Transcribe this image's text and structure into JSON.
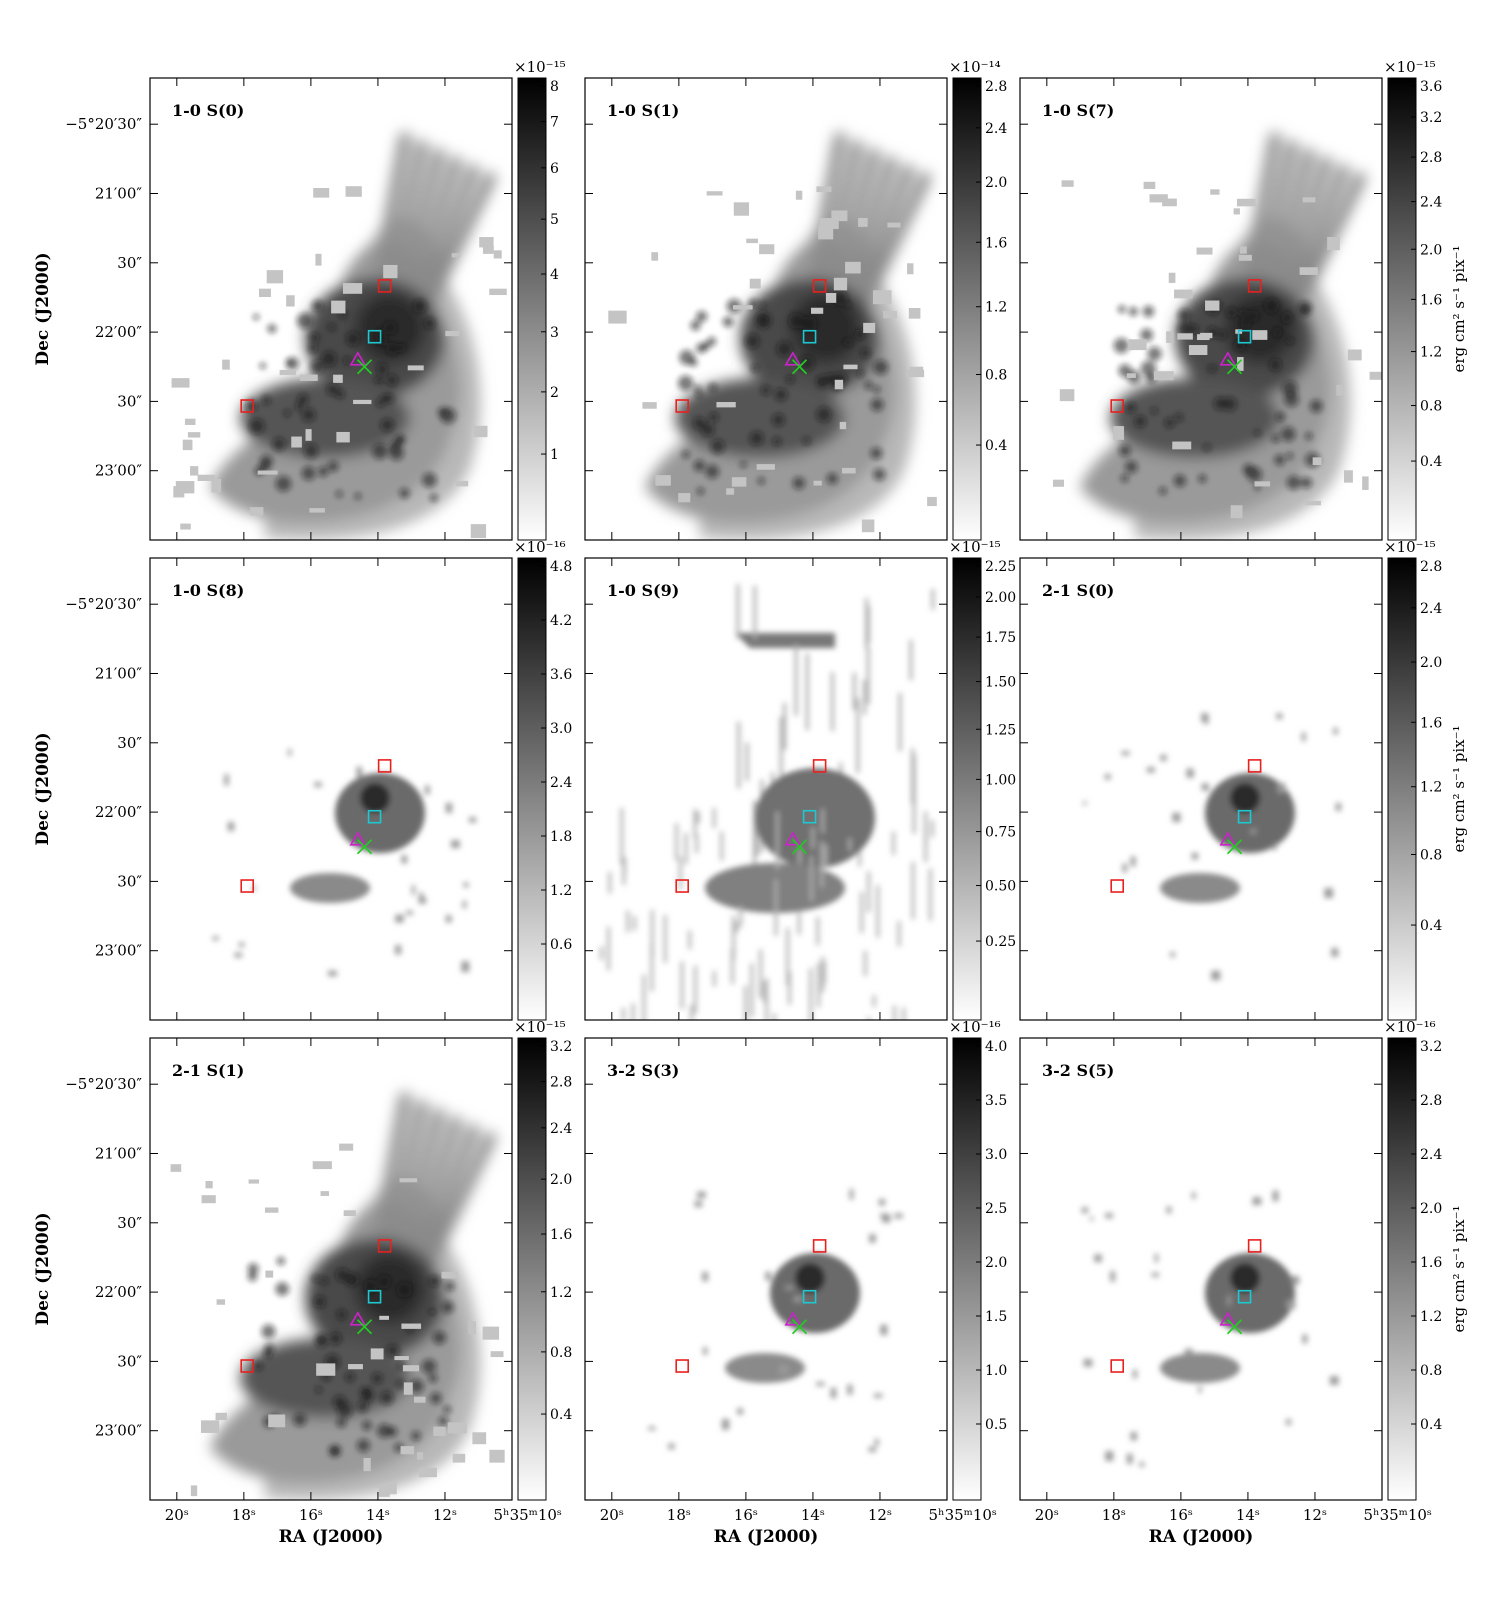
{
  "figure": {
    "y_axis_label": "Dec (J2000)",
    "x_axis_label": "RA (J2000)",
    "colorbar_label": "erg cm² s⁻¹ pix⁻¹",
    "dec_ticks": [
      "−5°20′30″",
      "21′00″",
      "30″",
      "22′00″",
      "30″",
      "23′00″"
    ],
    "ra_ticks": [
      "20ˢ",
      "18ˢ",
      "16ˢ",
      "14ˢ",
      "12ˢ",
      "5ʰ35ᵐ10ˢ"
    ]
  },
  "colors": {
    "red_square": "#e8201e",
    "cyan_square": "#1ec8d0",
    "magenta_triangle": "#cc22cc",
    "green_cross": "#22cc22"
  },
  "markers": [
    {
      "type": "square",
      "color": "red",
      "ra_s": 13.8,
      "dec_off_arcsec": 90
    },
    {
      "type": "square",
      "color": "cyan",
      "ra_s": 14.1,
      "dec_off_arcsec": 112
    },
    {
      "type": "triangle",
      "color": "magenta",
      "ra_s": 14.6,
      "dec_off_arcsec": 122
    },
    {
      "type": "cross",
      "color": "green",
      "ra_s": 14.4,
      "dec_off_arcsec": 125
    },
    {
      "type": "square",
      "color": "red",
      "ra_s": 17.9,
      "dec_off_arcsec": 142
    }
  ],
  "chart_data": [
    {
      "type": "heatmap",
      "title": "1-0 S(0)",
      "cbar_multiplier": "×10⁻¹⁵",
      "cbar_scale": "log",
      "cbar_ticks": [
        "8",
        "7",
        "6",
        "5",
        "4",
        "3",
        "2",
        "1"
      ],
      "emission": "extended"
    },
    {
      "type": "heatmap",
      "title": "1-0 S(1)",
      "cbar_multiplier": "×10⁻¹⁴",
      "cbar_scale": "log",
      "cbar_ticks": [
        "2.8",
        "2.4",
        "2.0",
        "1.6",
        "1.2",
        "0.8",
        "0.4"
      ],
      "emission": "extended"
    },
    {
      "type": "heatmap",
      "title": "1-0 S(7)",
      "cbar_multiplier": "×10⁻¹⁵",
      "cbar_scale": "log",
      "cbar_ticks": [
        "3.6",
        "3.2",
        "2.8",
        "2.4",
        "2.0",
        "1.6",
        "1.2",
        "0.8",
        "0.4"
      ],
      "emission": "extended"
    },
    {
      "type": "heatmap",
      "title": "1-0 S(8)",
      "cbar_multiplier": "×10⁻¹⁶",
      "cbar_scale": "linear",
      "cbar_ticks": [
        "4.8",
        "4.2",
        "3.6",
        "3.0",
        "2.4",
        "1.8",
        "1.2",
        "0.6"
      ],
      "emission": "compact"
    },
    {
      "type": "heatmap",
      "title": "1-0 S(9)",
      "cbar_multiplier": "×10⁻¹⁵",
      "cbar_scale": "log",
      "cbar_ticks": [
        "2.25",
        "2.00",
        "1.75",
        "1.50",
        "1.25",
        "1.00",
        "0.75",
        "0.50",
        "0.25"
      ],
      "emission": "moderate"
    },
    {
      "type": "heatmap",
      "title": "2-1 S(0)",
      "cbar_multiplier": "×10⁻¹⁵",
      "cbar_scale": "log",
      "cbar_ticks": [
        "2.8",
        "2.4",
        "2.0",
        "1.6",
        "1.2",
        "0.8",
        "0.4"
      ],
      "emission": "compact"
    },
    {
      "type": "heatmap",
      "title": "2-1 S(1)",
      "cbar_multiplier": "×10⁻¹⁵",
      "cbar_scale": "log",
      "cbar_ticks": [
        "3.2",
        "2.8",
        "2.4",
        "2.0",
        "1.6",
        "1.2",
        "0.8",
        "0.4"
      ],
      "emission": "extended"
    },
    {
      "type": "heatmap",
      "title": "3-2 S(3)",
      "cbar_multiplier": "×10⁻¹⁶",
      "cbar_scale": "linear",
      "cbar_ticks": [
        "4.0",
        "3.5",
        "3.0",
        "2.5",
        "2.0",
        "1.5",
        "1.0",
        "0.5"
      ],
      "emission": "compact"
    },
    {
      "type": "heatmap",
      "title": "3-2 S(5)",
      "cbar_multiplier": "×10⁻¹⁶",
      "cbar_scale": "linear",
      "cbar_ticks": [
        "3.2",
        "2.8",
        "2.4",
        "2.0",
        "1.6",
        "1.2",
        "0.8",
        "0.4"
      ],
      "emission": "compact"
    }
  ]
}
